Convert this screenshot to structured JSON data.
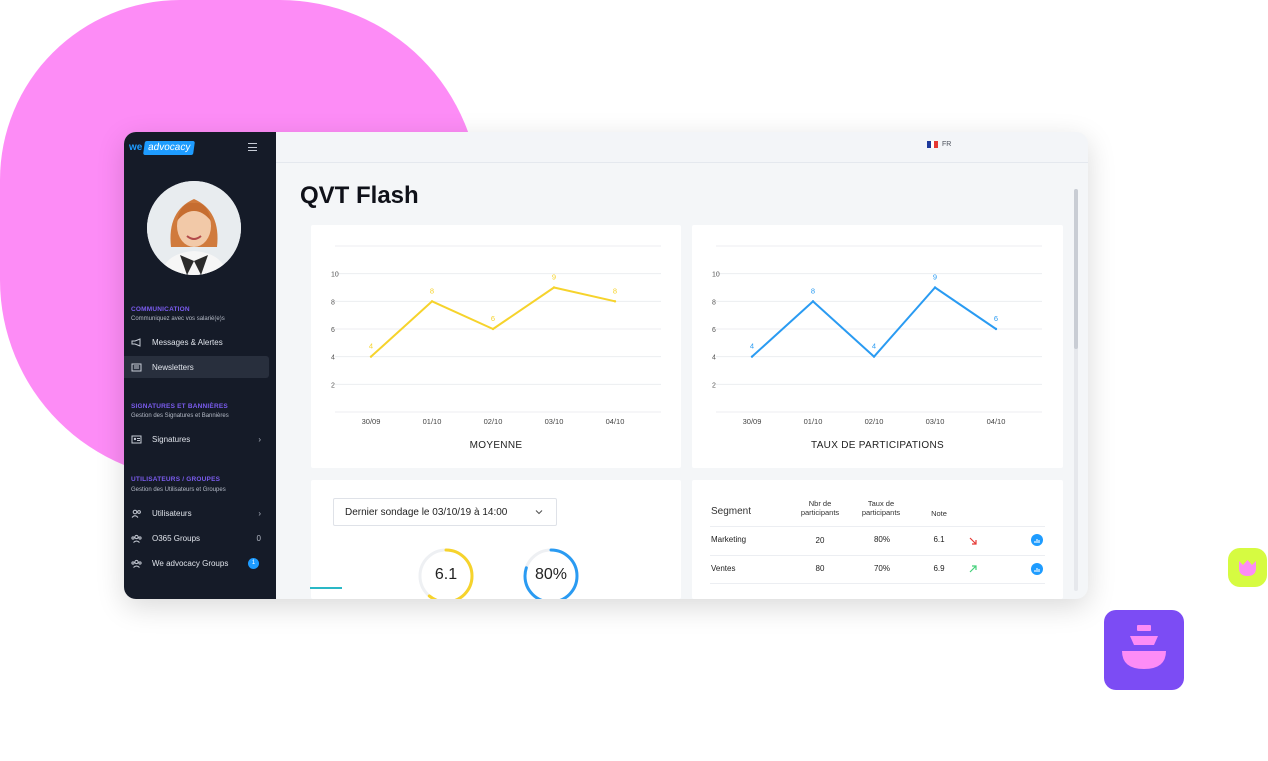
{
  "app": {
    "logo_we": "we",
    "logo_advocacy": "advocacy",
    "language": "FR",
    "page_title": "QVT Flash"
  },
  "colors": {
    "decor_pink": "#fd8cf6",
    "decor_lime": "#d6fb41",
    "decor_violet": "#7c4cf4",
    "sidebar_bg": "#151b28",
    "accent_blue": "#1e9cff",
    "section_purple": "#7b5cf0",
    "chart_yellow": "#f6d32c",
    "chart_blue": "#2a9bf2"
  },
  "sidebar": {
    "sections": [
      {
        "title": "COMMUNICATION",
        "subtitle": "Communiquez avec vos salarié(e)s",
        "items": [
          {
            "label": "Messages & Alertes",
            "icon": "megaphone-icon"
          },
          {
            "label": "Newsletters",
            "icon": "newspaper-icon",
            "active": true
          }
        ]
      },
      {
        "title": "SIGNATURES ET BANNIÈRES",
        "subtitle": "Gestion des Signatures et Bannières",
        "items": [
          {
            "label": "Signatures",
            "icon": "id-card-icon",
            "trailing": "›"
          }
        ]
      },
      {
        "title": "UTILISATEURS / GROUPES",
        "subtitle": "Gestion des Utilisateurs et Groupes",
        "items": [
          {
            "label": "Utilisateurs",
            "icon": "users-icon",
            "trailing": "›"
          },
          {
            "label": "O365 Groups",
            "icon": "group-icon",
            "trailing": "0"
          },
          {
            "label": "We advocacy Groups",
            "icon": "group-icon",
            "badge": "1"
          }
        ]
      }
    ]
  },
  "chart_data": [
    {
      "type": "line",
      "title": "MOYENNE",
      "x": [
        "30/09",
        "01/10",
        "02/10",
        "03/10",
        "04/10"
      ],
      "series": [
        {
          "values": [
            4,
            8,
            6,
            9,
            8
          ],
          "point_labels": [
            "4",
            "8",
            "6",
            "9",
            "8"
          ]
        }
      ],
      "ylim": [
        0,
        12
      ],
      "yticks": [
        2,
        4,
        6,
        8,
        10
      ],
      "grid": true,
      "color": "#f6d32c"
    },
    {
      "type": "line",
      "title": "TAUX DE PARTICIPATIONS",
      "x": [
        "30/09",
        "01/10",
        "02/10",
        "03/10",
        "04/10"
      ],
      "series": [
        {
          "values": [
            4,
            8,
            4,
            9,
            6
          ],
          "point_labels": [
            "4",
            "8",
            "4",
            "9",
            "6"
          ]
        }
      ],
      "ylim": [
        0,
        12
      ],
      "yticks": [
        2,
        4,
        6,
        8,
        10
      ],
      "grid": true,
      "color": "#2a9bf2"
    }
  ],
  "survey": {
    "select_label": "Dernier sondage le 03/10/19 à 14:00",
    "gauges": [
      {
        "value_label": "6.1",
        "fraction": 0.61,
        "color": "#f6d32c"
      },
      {
        "value_label": "80%",
        "fraction": 0.8,
        "color": "#2a9bf2"
      }
    ]
  },
  "segments": {
    "headers": {
      "segment": "Segment",
      "nbr": "Nbr de participants",
      "taux": "Taux de participants",
      "note": "Note"
    },
    "rows": [
      {
        "segment": "Marketing",
        "nbr": "20",
        "taux": "80%",
        "note": "6.1",
        "trend": "down",
        "trend_color": "#e53935"
      },
      {
        "segment": "Ventes",
        "nbr": "80",
        "taux": "70%",
        "note": "6.9",
        "trend": "up",
        "trend_color": "#43d17a"
      }
    ]
  }
}
